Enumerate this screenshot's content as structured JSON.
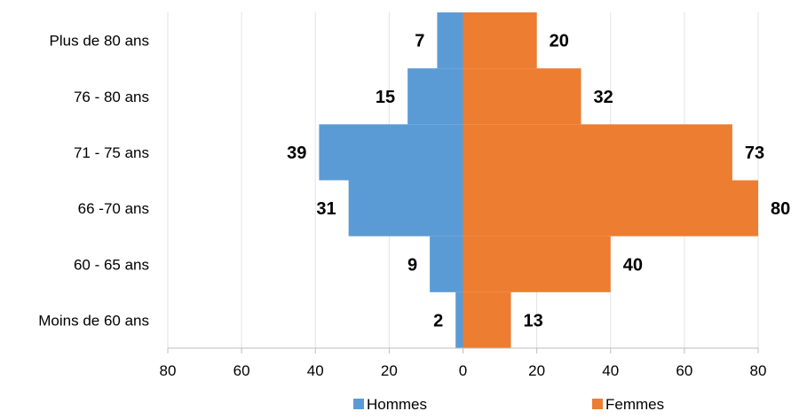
{
  "chart_data": {
    "type": "bar",
    "orientation": "horizontal",
    "layout": "population-pyramid",
    "categories": [
      "Moins de 60 ans",
      "60 - 65 ans",
      "66 -70 ans",
      "71 - 75 ans",
      "76 - 80 ans",
      "Plus de 80 ans"
    ],
    "series": [
      {
        "name": "Hommes",
        "values": [
          2,
          9,
          31,
          39,
          15,
          7
        ],
        "color": "#5B9BD5",
        "side": "left"
      },
      {
        "name": "Femmes",
        "values": [
          13,
          40,
          80,
          73,
          32,
          20
        ],
        "color": "#ED7D31",
        "side": "right"
      }
    ],
    "x_ticks": [
      "80",
      "60",
      "40",
      "20",
      "0",
      "20",
      "40",
      "60",
      "80"
    ],
    "xlim": [
      -80,
      80
    ],
    "grid": true,
    "legend_position": "bottom",
    "data_labels": true
  }
}
